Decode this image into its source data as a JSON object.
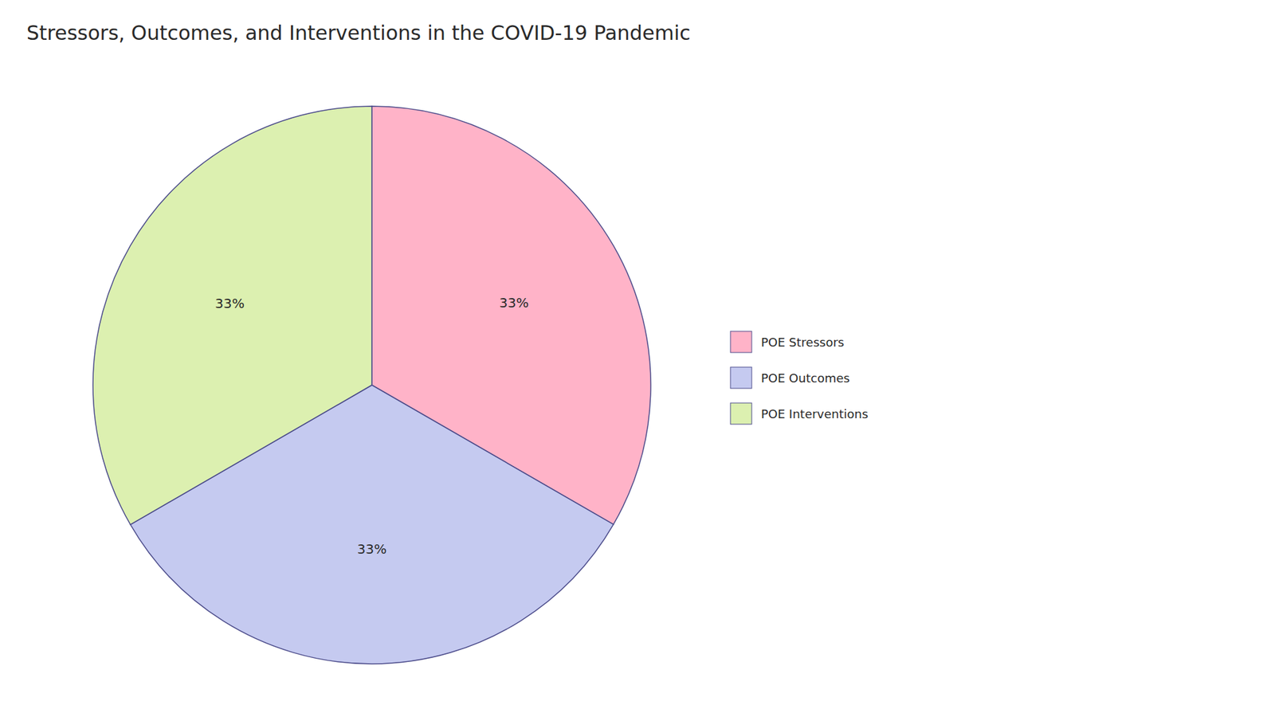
{
  "chart_data": {
    "type": "pie",
    "title": "Stressors, Outcomes, and Interventions in the COVID-19 Pandemic",
    "categories": [
      "POE Stressors",
      "POE Outcomes",
      "POE Interventions"
    ],
    "values": [
      33.33,
      33.33,
      33.34
    ],
    "value_labels": [
      "33%",
      "33%",
      "33%"
    ],
    "colors": [
      "#FFB3C8",
      "#C5CAF0",
      "#DCF0B0"
    ],
    "data_labels": true,
    "legend": "right"
  }
}
